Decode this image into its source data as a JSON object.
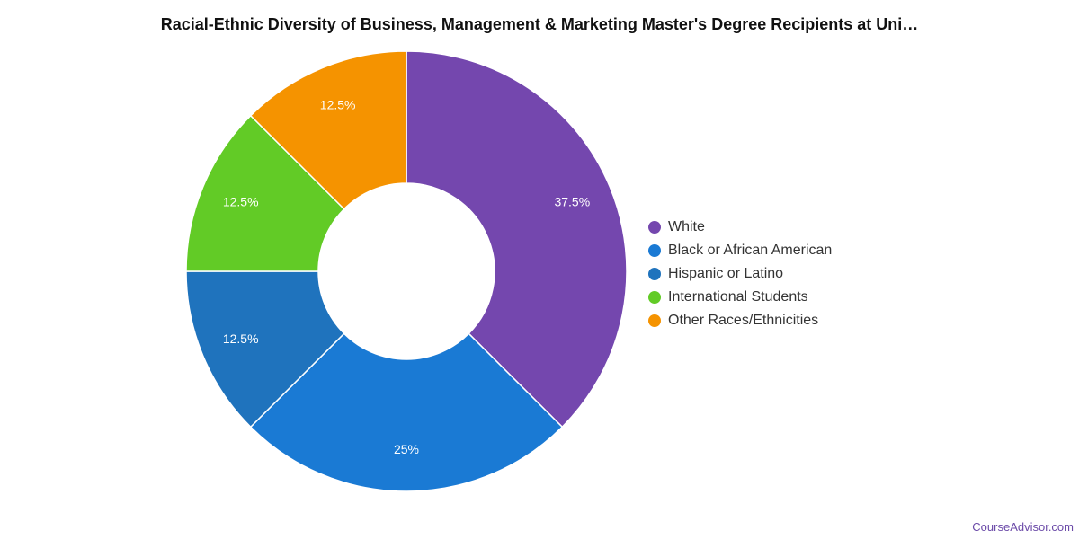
{
  "chart_data": {
    "type": "pie",
    "variant": "donut",
    "title": "Racial-Ethnic Diversity of Business, Management & Marketing Master's Degree Recipients at Uni…",
    "series": [
      {
        "name": "White",
        "value": 37.5,
        "label": "37.5%",
        "color": "#7447AE"
      },
      {
        "name": "Black or African American",
        "value": 25,
        "label": "25%",
        "color": "#1A7AD4"
      },
      {
        "name": "Hispanic or Latino",
        "value": 12.5,
        "label": "12.5%",
        "color": "#1F73BD"
      },
      {
        "name": "International Students",
        "value": 12.5,
        "label": "12.5%",
        "color": "#62CB26"
      },
      {
        "name": "Other Races/Ethnicities",
        "value": 12.5,
        "label": "12.5%",
        "color": "#F59300"
      }
    ],
    "legend_position": "right"
  },
  "watermark": "CourseAdvisor.com"
}
